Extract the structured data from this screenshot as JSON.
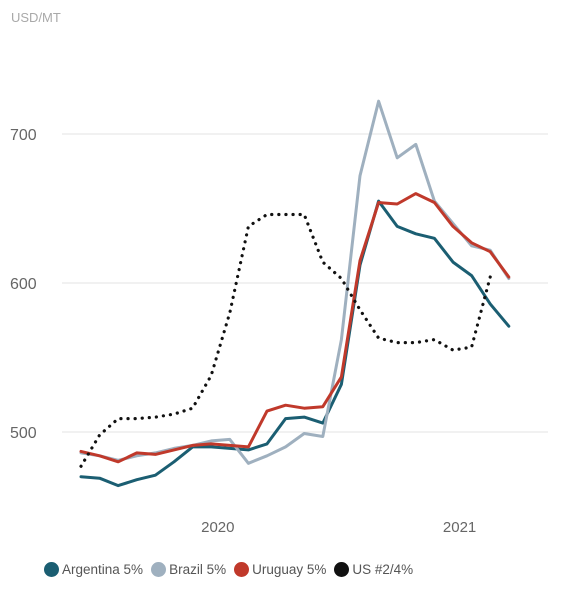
{
  "chart_data": {
    "type": "line",
    "unit_label": "USD/MT",
    "title": "",
    "xlabel": "",
    "ylabel": "USD/MT",
    "x_ticks": [
      "2020",
      "2021"
    ],
    "y_ticks": [
      500,
      600,
      700
    ],
    "ylim": [
      460,
      730
    ],
    "grid": true,
    "legend_position": "bottom",
    "x": [
      "2019-07",
      "2019-08",
      "2019-09",
      "2019-10",
      "2019-11",
      "2019-12",
      "2020-01",
      "2020-02",
      "2020-03",
      "2020-04",
      "2020-05",
      "2020-06",
      "2020-07",
      "2020-08",
      "2020-09",
      "2020-10",
      "2020-11",
      "2020-12",
      "2021-01",
      "2021-02",
      "2021-03",
      "2021-04",
      "2021-05",
      "2021-06",
      "2021-07",
      "2021-08"
    ],
    "series": [
      {
        "name": "Argentina 5%",
        "color": "#1b5e72",
        "style": "solid",
        "values": [
          470,
          469,
          464,
          468,
          471,
          480,
          490,
          490,
          489,
          488,
          492,
          509,
          510,
          506,
          532,
          612,
          655,
          638,
          633,
          630,
          614,
          605,
          586,
          571,
          null,
          null
        ]
      },
      {
        "name": "Brazil 5%",
        "color": "#9fb0bf",
        "style": "solid",
        "values": [
          486,
          484,
          481,
          484,
          486,
          489,
          491,
          494,
          495,
          479,
          484,
          490,
          499,
          497,
          562,
          672,
          722,
          684,
          693,
          655,
          640,
          625,
          622,
          603,
          null,
          null
        ]
      },
      {
        "name": "Uruguay 5%",
        "color": "#c0392b",
        "style": "solid",
        "values": [
          487,
          484,
          480,
          486,
          485,
          488,
          491,
          492,
          491,
          490,
          514,
          518,
          516,
          517,
          537,
          615,
          654,
          653,
          660,
          654,
          638,
          627,
          621,
          604,
          null,
          null
        ]
      },
      {
        "name": "US #2/4%",
        "color": "#111111",
        "style": "dotted",
        "values": [
          477,
          498,
          509,
          509,
          510,
          512,
          516,
          538,
          580,
          638,
          646,
          646,
          646,
          614,
          603,
          582,
          563,
          560,
          560,
          562,
          555,
          557,
          604,
          null,
          null,
          null
        ]
      }
    ]
  }
}
